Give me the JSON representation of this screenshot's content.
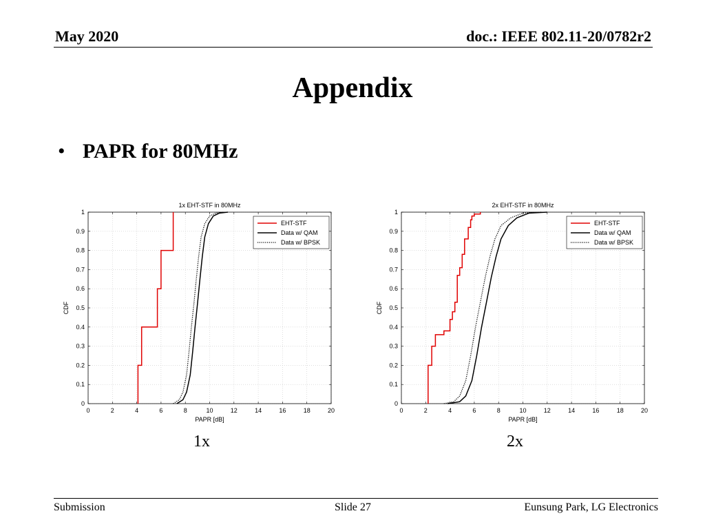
{
  "header": {
    "date": "May 2020",
    "doc": "doc.: IEEE 802.11-20/0782r2"
  },
  "title": "Appendix",
  "bullet": {
    "marker": "•",
    "text": "PAPR for 80MHz"
  },
  "captions": [
    "1x",
    "2x"
  ],
  "footer": {
    "left": "Submission",
    "center": "Slide 27",
    "right": "Eunsung Park, LG Electronics"
  },
  "colors": {
    "eht": "#e00000",
    "qam": "#000000",
    "bpsk": "#000000"
  },
  "chart_data": [
    {
      "type": "line",
      "title": "1x EHT-STF in 80MHz",
      "xlabel": "PAPR [dB]",
      "ylabel": "CDF",
      "xlim": [
        0,
        20
      ],
      "ylim": [
        0,
        1
      ],
      "xticks": [
        0,
        2,
        4,
        6,
        8,
        10,
        12,
        14,
        16,
        18,
        20
      ],
      "yticks": [
        0,
        0.1,
        0.2,
        0.3,
        0.4,
        0.5,
        0.6,
        0.7,
        0.8,
        0.9,
        1
      ],
      "grid": true,
      "legend": "top-right",
      "series": [
        {
          "name": "EHT-STF",
          "style": "step",
          "x": [
            4.1,
            4.1,
            4.4,
            4.4,
            5.7,
            5.7,
            6.0,
            6.0,
            7.0,
            7.0
          ],
          "y": [
            0,
            0.2,
            0.2,
            0.4,
            0.4,
            0.6,
            0.6,
            0.8,
            0.8,
            1.0
          ]
        },
        {
          "name": "Data w/ QAM",
          "style": "solid",
          "x": [
            7.3,
            7.8,
            8.1,
            8.4,
            8.6,
            8.8,
            9.0,
            9.2,
            9.4,
            9.6,
            9.9,
            10.3,
            10.8,
            11.5
          ],
          "y": [
            0,
            0.02,
            0.06,
            0.15,
            0.27,
            0.4,
            0.52,
            0.65,
            0.77,
            0.87,
            0.94,
            0.98,
            0.995,
            1
          ]
        },
        {
          "name": "Data w/ BPSK",
          "style": "dotted",
          "x": [
            7.0,
            7.5,
            7.8,
            8.1,
            8.3,
            8.5,
            8.7,
            8.9,
            9.1,
            9.3,
            9.6,
            10.0,
            10.5,
            11.2
          ],
          "y": [
            0,
            0.02,
            0.06,
            0.15,
            0.27,
            0.4,
            0.52,
            0.65,
            0.77,
            0.87,
            0.94,
            0.98,
            0.995,
            1
          ]
        }
      ]
    },
    {
      "type": "line",
      "title": "2x EHT-STF in 80MHz",
      "xlabel": "PAPR [dB]",
      "ylabel": "CDF",
      "xlim": [
        0,
        20
      ],
      "ylim": [
        0,
        1
      ],
      "xticks": [
        0,
        2,
        4,
        6,
        8,
        10,
        12,
        14,
        16,
        18,
        20
      ],
      "yticks": [
        0,
        0.1,
        0.2,
        0.3,
        0.4,
        0.5,
        0.6,
        0.7,
        0.8,
        0.9,
        1
      ],
      "grid": true,
      "legend": "top-right",
      "series": [
        {
          "name": "EHT-STF",
          "style": "step",
          "x": [
            2.2,
            2.2,
            2.5,
            2.5,
            2.8,
            2.8,
            3.5,
            3.5,
            4.0,
            4.0,
            4.2,
            4.2,
            4.4,
            4.4,
            4.6,
            4.6,
            4.8,
            4.8,
            5.0,
            5.0,
            5.2,
            5.2,
            5.5,
            5.5,
            5.7,
            5.7,
            5.8,
            5.8,
            6.0,
            6.0,
            6.5,
            6.5
          ],
          "y": [
            0,
            0.2,
            0.2,
            0.3,
            0.3,
            0.36,
            0.36,
            0.38,
            0.38,
            0.44,
            0.44,
            0.48,
            0.48,
            0.53,
            0.53,
            0.67,
            0.67,
            0.71,
            0.71,
            0.78,
            0.78,
            0.86,
            0.86,
            0.92,
            0.92,
            0.96,
            0.96,
            0.98,
            0.98,
            0.99,
            0.99,
            1.0
          ]
        },
        {
          "name": "Data w/ QAM",
          "style": "solid",
          "x": [
            3.8,
            4.8,
            5.3,
            5.8,
            6.2,
            6.6,
            7.0,
            7.4,
            7.8,
            8.2,
            8.8,
            9.5,
            10.5,
            12.0
          ],
          "y": [
            0,
            0.01,
            0.04,
            0.12,
            0.25,
            0.4,
            0.53,
            0.66,
            0.77,
            0.86,
            0.93,
            0.97,
            0.995,
            1
          ]
        },
        {
          "name": "Data w/ BPSK",
          "style": "dotted",
          "x": [
            3.5,
            4.3,
            4.8,
            5.3,
            5.7,
            6.1,
            6.5,
            6.9,
            7.3,
            7.7,
            8.2,
            9.0,
            10.0,
            11.5
          ],
          "y": [
            0,
            0.01,
            0.04,
            0.12,
            0.25,
            0.4,
            0.53,
            0.66,
            0.77,
            0.86,
            0.93,
            0.97,
            0.995,
            1
          ]
        }
      ]
    }
  ]
}
